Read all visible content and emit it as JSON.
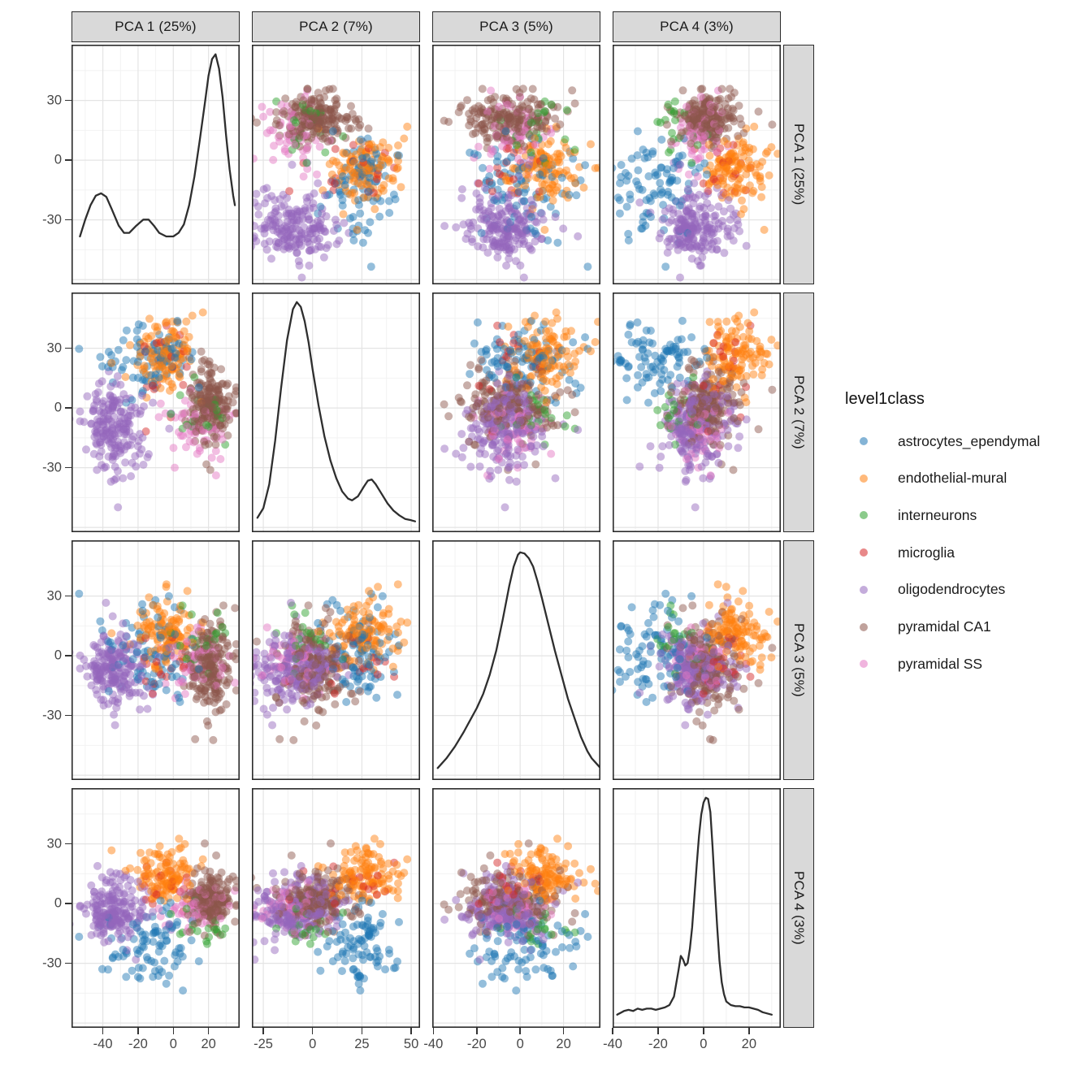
{
  "legend": {
    "title": "level1class",
    "items": [
      {
        "label": "astrocytes_ependymal",
        "color": "#1f77b4"
      },
      {
        "label": "endothelial-mural",
        "color": "#ff7f0e"
      },
      {
        "label": "interneurons",
        "color": "#2ca02c"
      },
      {
        "label": "microglia",
        "color": "#d62728"
      },
      {
        "label": "oligodendrocytes",
        "color": "#9467bd"
      },
      {
        "label": "pyramidal CA1",
        "color": "#8c564b"
      },
      {
        "label": "pyramidal SS",
        "color": "#e377c2"
      }
    ]
  },
  "chart_data": {
    "type": "scatterplot-matrix",
    "diagonal": "density",
    "facets": [
      {
        "id": "PC1",
        "label": "PCA 1 (25%)",
        "x_ticks": [
          -40,
          -20,
          0,
          20
        ],
        "x_range": [
          -57.8,
          37.7
        ],
        "grid_step": 20
      },
      {
        "id": "PC2",
        "label": "PCA 2 (7%)",
        "x_ticks": [
          -25,
          0,
          25,
          50
        ],
        "x_range": [
          -30.8,
          54.5
        ],
        "grid_step": 25
      },
      {
        "id": "PC3",
        "label": "PCA 3 (5%)",
        "x_ticks": [
          -40,
          -20,
          0,
          20
        ],
        "x_range": [
          -40.5,
          37.0
        ],
        "grid_step": 20
      },
      {
        "id": "PC4",
        "label": "PCA 4 (3%)",
        "x_ticks": [
          -40,
          -20,
          0,
          20
        ],
        "x_range": [
          -40.0,
          34.0
        ],
        "grid_step": 20
      }
    ],
    "y_axis": {
      "ticks": [
        -30,
        0,
        30
      ],
      "range": [
        -62.4,
        58.0
      ],
      "grid_step": 30
    },
    "classes": [
      {
        "label": "astrocytes_ependymal",
        "color": "#1f77b4",
        "n": 90,
        "means": [
          -14,
          24,
          2,
          -20
        ],
        "sds": [
          13,
          11,
          12,
          10
        ]
      },
      {
        "label": "endothelial-mural",
        "color": "#ff7f0e",
        "n": 115,
        "means": [
          -4,
          28,
          10,
          15
        ],
        "sds": [
          9,
          9,
          9,
          7
        ]
      },
      {
        "label": "interneurons",
        "color": "#2ca02c",
        "n": 20,
        "means": [
          14,
          0,
          8,
          -11
        ],
        "sds": [
          8,
          9,
          9,
          7
        ]
      },
      {
        "label": "microglia",
        "color": "#d62728",
        "n": 18,
        "means": [
          -8,
          22,
          -3,
          12
        ],
        "sds": [
          10,
          13,
          10,
          9
        ]
      },
      {
        "label": "oligodendrocytes",
        "color": "#9467bd",
        "n": 195,
        "means": [
          -33,
          -9,
          -8,
          -3
        ],
        "sds": [
          9,
          11,
          10,
          8
        ]
      },
      {
        "label": "pyramidal CA1",
        "color": "#8c564b",
        "n": 190,
        "means": [
          21,
          1,
          -6,
          1
        ],
        "sds": [
          7,
          9,
          11,
          7
        ]
      },
      {
        "label": "pyramidal SS",
        "color": "#e377c2",
        "n": 58,
        "means": [
          12,
          -13,
          -2,
          -1
        ],
        "sds": [
          9,
          9,
          9,
          6
        ]
      }
    ],
    "densities": {
      "PC1": [
        [
          -53,
          0.2
        ],
        [
          -50,
          0.27
        ],
        [
          -47,
          0.33
        ],
        [
          -44,
          0.37
        ],
        [
          -41,
          0.38
        ],
        [
          -38,
          0.365
        ],
        [
          -35,
          0.315
        ],
        [
          -31,
          0.245
        ],
        [
          -28,
          0.215
        ],
        [
          -25,
          0.215
        ],
        [
          -21,
          0.245
        ],
        [
          -17,
          0.27
        ],
        [
          -14,
          0.27
        ],
        [
          -11,
          0.245
        ],
        [
          -8,
          0.215
        ],
        [
          -4,
          0.2
        ],
        [
          0,
          0.2
        ],
        [
          3,
          0.215
        ],
        [
          6,
          0.25
        ],
        [
          9,
          0.33
        ],
        [
          12,
          0.45
        ],
        [
          15,
          0.6
        ],
        [
          18,
          0.76
        ],
        [
          20,
          0.87
        ],
        [
          22,
          0.94
        ],
        [
          24,
          0.96
        ],
        [
          26,
          0.9
        ],
        [
          28,
          0.78
        ],
        [
          30,
          0.62
        ],
        [
          32,
          0.48
        ],
        [
          34,
          0.37
        ],
        [
          35,
          0.33
        ]
      ],
      "PC2": [
        [
          -28,
          0.06
        ],
        [
          -25,
          0.1
        ],
        [
          -22,
          0.2
        ],
        [
          -19,
          0.38
        ],
        [
          -16,
          0.6
        ],
        [
          -13,
          0.8
        ],
        [
          -10,
          0.93
        ],
        [
          -8,
          0.96
        ],
        [
          -6,
          0.94
        ],
        [
          -4,
          0.88
        ],
        [
          -2,
          0.79
        ],
        [
          0,
          0.68
        ],
        [
          3,
          0.53
        ],
        [
          6,
          0.4
        ],
        [
          9,
          0.3
        ],
        [
          12,
          0.225
        ],
        [
          15,
          0.17
        ],
        [
          18,
          0.14
        ],
        [
          20,
          0.133
        ],
        [
          23,
          0.15
        ],
        [
          26,
          0.19
        ],
        [
          28,
          0.215
        ],
        [
          30,
          0.22
        ],
        [
          32,
          0.2
        ],
        [
          35,
          0.16
        ],
        [
          38,
          0.12
        ],
        [
          41,
          0.09
        ],
        [
          44,
          0.07
        ],
        [
          47,
          0.055
        ],
        [
          50,
          0.05
        ],
        [
          52,
          0.045
        ]
      ],
      "PC3": [
        [
          -38,
          0.05
        ],
        [
          -34,
          0.09
        ],
        [
          -30,
          0.14
        ],
        [
          -26,
          0.2
        ],
        [
          -23,
          0.25
        ],
        [
          -20,
          0.3
        ],
        [
          -17,
          0.36
        ],
        [
          -14,
          0.44
        ],
        [
          -11,
          0.54
        ],
        [
          -8,
          0.67
        ],
        [
          -5,
          0.81
        ],
        [
          -3,
          0.89
        ],
        [
          -1,
          0.94
        ],
        [
          0,
          0.95
        ],
        [
          2,
          0.945
        ],
        [
          4,
          0.925
        ],
        [
          6,
          0.89
        ],
        [
          8,
          0.83
        ],
        [
          10,
          0.76
        ],
        [
          13,
          0.65
        ],
        [
          16,
          0.54
        ],
        [
          19,
          0.44
        ],
        [
          22,
          0.34
        ],
        [
          25,
          0.26
        ],
        [
          28,
          0.18
        ],
        [
          31,
          0.12
        ],
        [
          33,
          0.09
        ],
        [
          35,
          0.07
        ],
        [
          36.5,
          0.055
        ]
      ],
      "PC4": [
        [
          -38,
          0.055
        ],
        [
          -35,
          0.07
        ],
        [
          -33,
          0.075
        ],
        [
          -31,
          0.07
        ],
        [
          -29,
          0.08
        ],
        [
          -27,
          0.075
        ],
        [
          -25,
          0.08
        ],
        [
          -23,
          0.08
        ],
        [
          -21,
          0.075
        ],
        [
          -19,
          0.08
        ],
        [
          -17,
          0.085
        ],
        [
          -15,
          0.095
        ],
        [
          -13,
          0.13
        ],
        [
          -11,
          0.24
        ],
        [
          -10,
          0.3
        ],
        [
          -9,
          0.285
        ],
        [
          -8,
          0.26
        ],
        [
          -7,
          0.27
        ],
        [
          -6,
          0.33
        ],
        [
          -5,
          0.42
        ],
        [
          -4,
          0.55
        ],
        [
          -3,
          0.68
        ],
        [
          -2,
          0.8
        ],
        [
          -1,
          0.89
        ],
        [
          0,
          0.94
        ],
        [
          1,
          0.96
        ],
        [
          2,
          0.955
        ],
        [
          3,
          0.9
        ],
        [
          4,
          0.75
        ],
        [
          5,
          0.58
        ],
        [
          6,
          0.42
        ],
        [
          7,
          0.28
        ],
        [
          8,
          0.19
        ],
        [
          9,
          0.14
        ],
        [
          10,
          0.11
        ],
        [
          12,
          0.095
        ],
        [
          14,
          0.09
        ],
        [
          16,
          0.09
        ],
        [
          18,
          0.085
        ],
        [
          20,
          0.085
        ],
        [
          22,
          0.08
        ],
        [
          24,
          0.075
        ],
        [
          26,
          0.065
        ],
        [
          28,
          0.06
        ],
        [
          30,
          0.055
        ]
      ]
    },
    "colors": {
      "grid_major": "#e4e4e4",
      "grid_minor": "#f2f2f2",
      "panel_border": "#2b2b2b",
      "strip_bg": "#d9d9d9",
      "density_line": "#2e2e2e",
      "axis_text": "#474747",
      "tick": "#333333"
    },
    "point_style": {
      "radius": 5,
      "opacity": 0.48
    }
  }
}
